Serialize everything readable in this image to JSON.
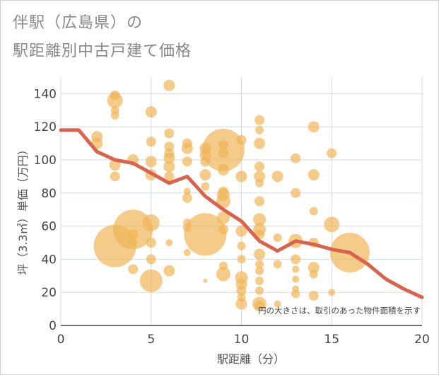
{
  "chart_data": {
    "type": "scatter",
    "title": "伴駅（広島県）の",
    "subtitle": "駅距離別中古戸建て価格",
    "xlabel": "駅距離（分）",
    "ylabel": "坪（3.3㎡）単価（万円）",
    "note": "円の大きさは、取引のあった物件面積を示す",
    "xlim": [
      0,
      20
    ],
    "ylim": [
      0,
      150
    ],
    "xticks": [
      0,
      5,
      10,
      15,
      20
    ],
    "yticks": [
      0,
      20,
      40,
      60,
      80,
      100,
      120,
      140
    ],
    "grid": true,
    "colors": {
      "bubble": "#f0b557",
      "line": "#d9634c",
      "grid": "#d3dae6"
    },
    "bubbles": [
      {
        "x": 2,
        "y": 114,
        "s": 8
      },
      {
        "x": 2,
        "y": 110,
        "s": 8
      },
      {
        "x": 3,
        "y": 139,
        "s": 7
      },
      {
        "x": 3,
        "y": 136,
        "s": 11
      },
      {
        "x": 3,
        "y": 130,
        "s": 6
      },
      {
        "x": 3,
        "y": 127,
        "s": 6
      },
      {
        "x": 3,
        "y": 97,
        "s": 8
      },
      {
        "x": 3,
        "y": 90,
        "s": 7
      },
      {
        "x": 3,
        "y": 48,
        "s": 30
      },
      {
        "x": 4,
        "y": 100,
        "s": 8
      },
      {
        "x": 4,
        "y": 58,
        "s": 28
      },
      {
        "x": 4,
        "y": 55,
        "s": 7
      },
      {
        "x": 4,
        "y": 50,
        "s": 6
      },
      {
        "x": 4,
        "y": 34,
        "s": 7
      },
      {
        "x": 5,
        "y": 129,
        "s": 8
      },
      {
        "x": 5,
        "y": 111,
        "s": 7
      },
      {
        "x": 5,
        "y": 99,
        "s": 8
      },
      {
        "x": 5,
        "y": 91,
        "s": 8
      },
      {
        "x": 5,
        "y": 62,
        "s": 12
      },
      {
        "x": 5,
        "y": 50,
        "s": 7
      },
      {
        "x": 5,
        "y": 40,
        "s": 7
      },
      {
        "x": 5,
        "y": 27,
        "s": 16
      },
      {
        "x": 6,
        "y": 145,
        "s": 8
      },
      {
        "x": 6,
        "y": 116,
        "s": 7
      },
      {
        "x": 6,
        "y": 108,
        "s": 7
      },
      {
        "x": 6,
        "y": 104,
        "s": 7
      },
      {
        "x": 6,
        "y": 101,
        "s": 8
      },
      {
        "x": 6,
        "y": 96,
        "s": 8
      },
      {
        "x": 6,
        "y": 90,
        "s": 7
      },
      {
        "x": 6,
        "y": 50,
        "s": 5
      },
      {
        "x": 6,
        "y": 33,
        "s": 8
      },
      {
        "x": 7,
        "y": 110,
        "s": 7
      },
      {
        "x": 7,
        "y": 107,
        "s": 8
      },
      {
        "x": 7,
        "y": 99,
        "s": 7
      },
      {
        "x": 7,
        "y": 81,
        "s": 5
      },
      {
        "x": 7,
        "y": 77,
        "s": 7
      },
      {
        "x": 7,
        "y": 62,
        "s": 6
      },
      {
        "x": 7,
        "y": 59,
        "s": 6
      },
      {
        "x": 7,
        "y": 44,
        "s": 5
      },
      {
        "x": 8,
        "y": 107,
        "s": 8
      },
      {
        "x": 8,
        "y": 103,
        "s": 8
      },
      {
        "x": 8,
        "y": 99,
        "s": 7
      },
      {
        "x": 8,
        "y": 91,
        "s": 8
      },
      {
        "x": 8,
        "y": 84,
        "s": 6
      },
      {
        "x": 8,
        "y": 55,
        "s": 30
      },
      {
        "x": 8,
        "y": 27,
        "s": 3
      },
      {
        "x": 9,
        "y": 106,
        "s": 30
      },
      {
        "x": 9,
        "y": 109,
        "s": 7
      },
      {
        "x": 9,
        "y": 104,
        "s": 7
      },
      {
        "x": 9,
        "y": 94,
        "s": 8
      },
      {
        "x": 9,
        "y": 81,
        "s": 7
      },
      {
        "x": 9,
        "y": 79,
        "s": 9
      },
      {
        "x": 9,
        "y": 75,
        "s": 10
      },
      {
        "x": 9,
        "y": 65,
        "s": 9
      },
      {
        "x": 9,
        "y": 58,
        "s": 7
      },
      {
        "x": 9,
        "y": 36,
        "s": 6
      },
      {
        "x": 9,
        "y": 31,
        "s": 10
      },
      {
        "x": 10,
        "y": 112,
        "s": 7
      },
      {
        "x": 10,
        "y": 90,
        "s": 8
      },
      {
        "x": 10,
        "y": 57,
        "s": 8
      },
      {
        "x": 10,
        "y": 48,
        "s": 6
      },
      {
        "x": 10,
        "y": 40,
        "s": 6
      },
      {
        "x": 10,
        "y": 29,
        "s": 9
      },
      {
        "x": 10,
        "y": 25,
        "s": 8
      },
      {
        "x": 10,
        "y": 21,
        "s": 7
      },
      {
        "x": 10,
        "y": 17,
        "s": 6
      },
      {
        "x": 10,
        "y": 13,
        "s": 8
      },
      {
        "x": 11,
        "y": 124,
        "s": 7
      },
      {
        "x": 11,
        "y": 118,
        "s": 6
      },
      {
        "x": 11,
        "y": 110,
        "s": 8
      },
      {
        "x": 11,
        "y": 96,
        "s": 7
      },
      {
        "x": 11,
        "y": 90,
        "s": 8
      },
      {
        "x": 11,
        "y": 86,
        "s": 6
      },
      {
        "x": 11,
        "y": 75,
        "s": 7
      },
      {
        "x": 11,
        "y": 64,
        "s": 9
      },
      {
        "x": 11,
        "y": 58,
        "s": 9
      },
      {
        "x": 11,
        "y": 55,
        "s": 7
      },
      {
        "x": 11,
        "y": 43,
        "s": 8
      },
      {
        "x": 11,
        "y": 37,
        "s": 6
      },
      {
        "x": 11,
        "y": 33,
        "s": 6
      },
      {
        "x": 11,
        "y": 27,
        "s": 6
      },
      {
        "x": 11,
        "y": 21,
        "s": 6
      },
      {
        "x": 11,
        "y": 13,
        "s": 10
      },
      {
        "x": 11,
        "y": 12,
        "s": 7
      },
      {
        "x": 12,
        "y": 90,
        "s": 8
      },
      {
        "x": 12,
        "y": 53,
        "s": 6
      },
      {
        "x": 12,
        "y": 37,
        "s": 6
      },
      {
        "x": 12,
        "y": 13,
        "s": 5
      },
      {
        "x": 13,
        "y": 101,
        "s": 7
      },
      {
        "x": 13,
        "y": 80,
        "s": 7
      },
      {
        "x": 13,
        "y": 51,
        "s": 10
      },
      {
        "x": 13,
        "y": 40,
        "s": 7
      },
      {
        "x": 13,
        "y": 34,
        "s": 5
      },
      {
        "x": 13,
        "y": 28,
        "s": 5
      },
      {
        "x": 13,
        "y": 22,
        "s": 5
      },
      {
        "x": 13,
        "y": 19,
        "s": 6
      },
      {
        "x": 14,
        "y": 120,
        "s": 8
      },
      {
        "x": 14,
        "y": 91,
        "s": 8
      },
      {
        "x": 14,
        "y": 69,
        "s": 6
      },
      {
        "x": 14,
        "y": 50,
        "s": 7
      },
      {
        "x": 14,
        "y": 35,
        "s": 8
      },
      {
        "x": 14,
        "y": 31,
        "s": 6
      },
      {
        "x": 14,
        "y": 18,
        "s": 7
      },
      {
        "x": 15,
        "y": 104,
        "s": 7
      },
      {
        "x": 15,
        "y": 61,
        "s": 11
      },
      {
        "x": 15,
        "y": 20,
        "s": 5
      },
      {
        "x": 16,
        "y": 44,
        "s": 28
      }
    ],
    "line": {
      "x": [
        0,
        1,
        2,
        3,
        4,
        5,
        6,
        7,
        8,
        9,
        10,
        11,
        12,
        13,
        14,
        15,
        16,
        17,
        18,
        19,
        20
      ],
      "y": [
        118,
        118,
        105,
        100,
        98,
        92,
        86,
        90,
        78,
        70,
        63,
        51,
        45,
        51,
        49,
        46,
        44,
        37,
        28,
        22,
        17
      ]
    }
  }
}
